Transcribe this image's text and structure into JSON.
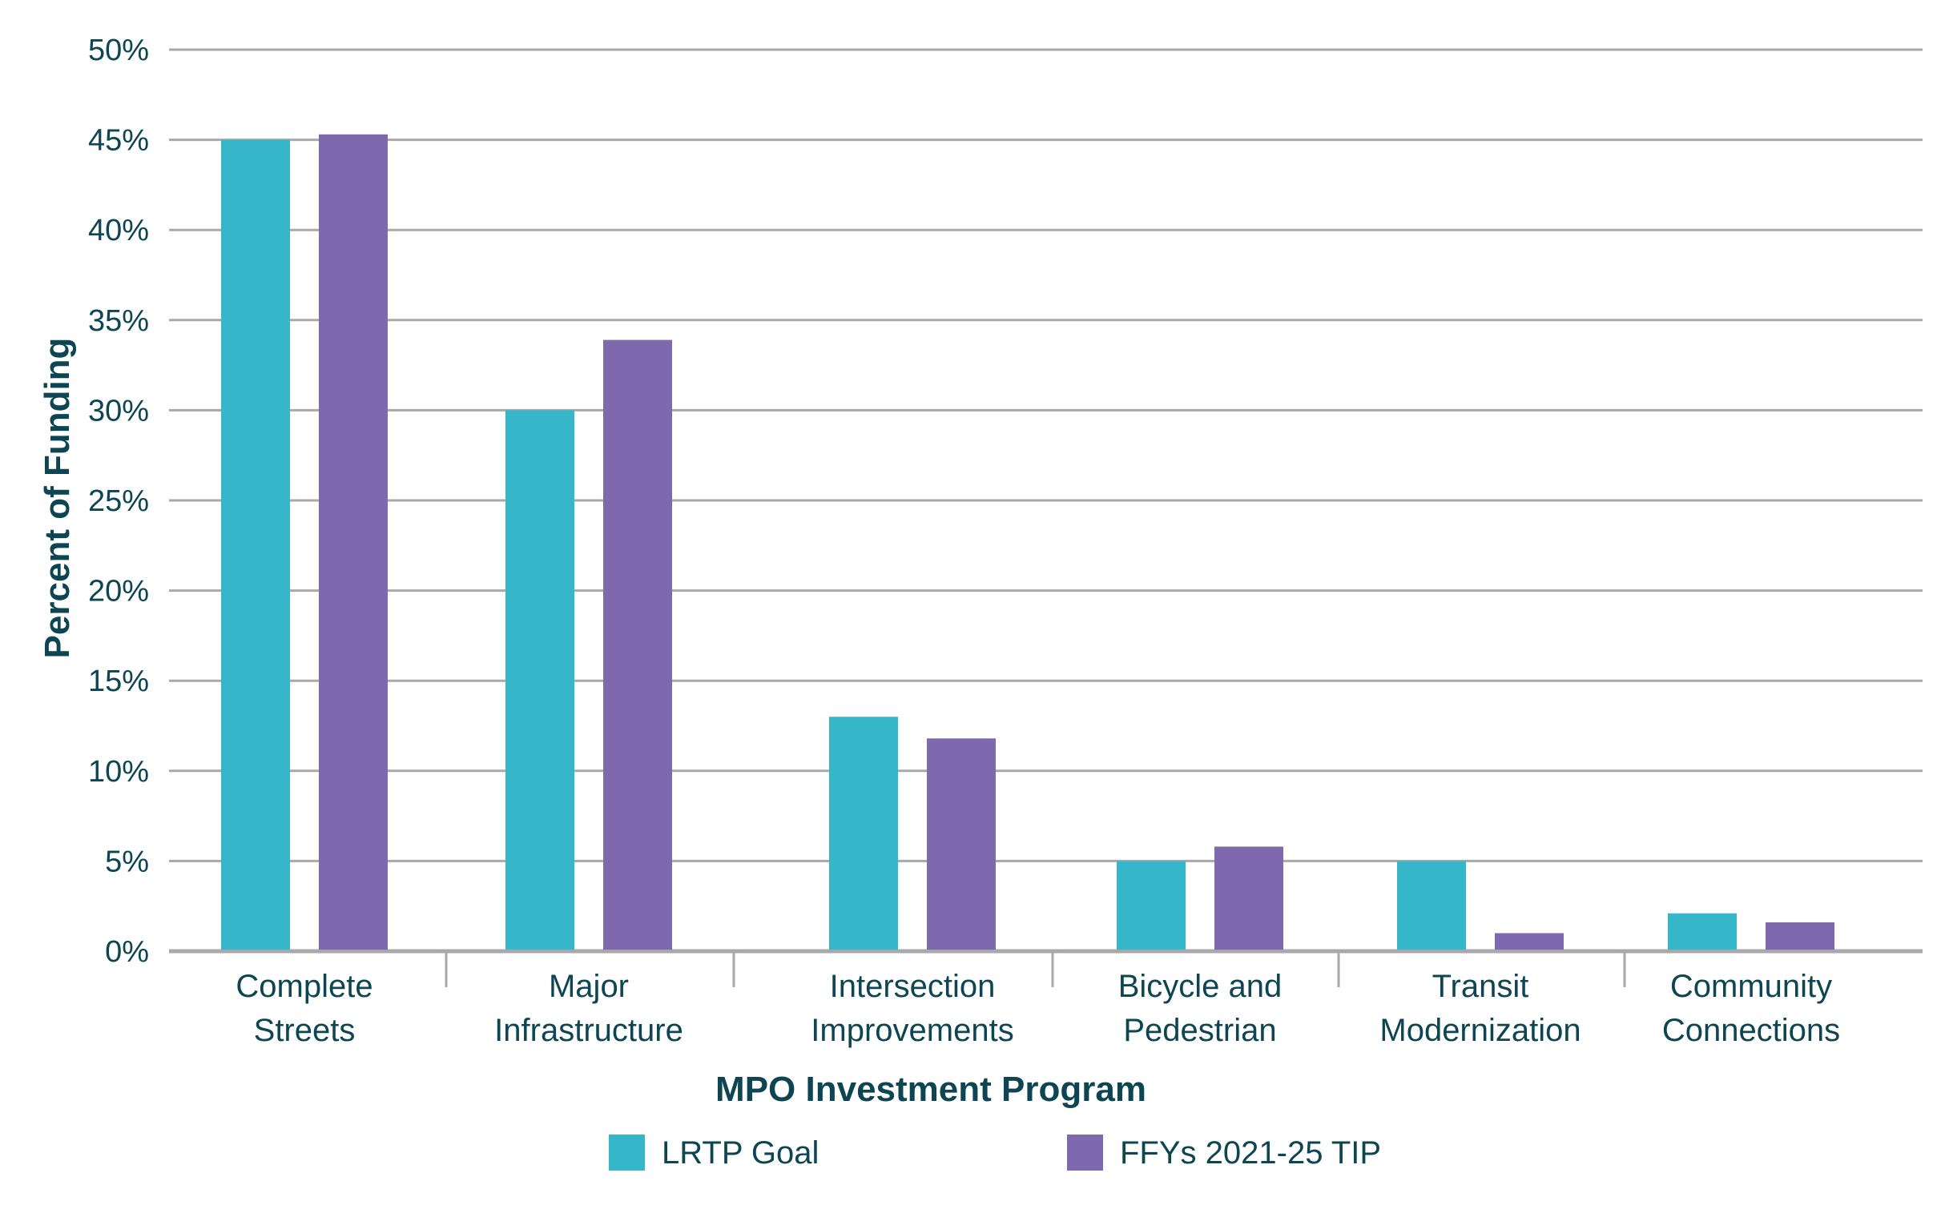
{
  "chart_data": {
    "type": "bar",
    "title": "",
    "xlabel": "MPO Investment Program",
    "ylabel": "Percent of Funding",
    "ylim": [
      0,
      50
    ],
    "yticks": [
      "0%",
      "5%",
      "10%",
      "15%",
      "20%",
      "25%",
      "30%",
      "35%",
      "40%",
      "45%",
      "50%"
    ],
    "grid": true,
    "legend_position": "bottom",
    "categories": [
      [
        "Complete",
        "Streets"
      ],
      [
        "Major",
        "Infrastructure"
      ],
      [
        "Intersection",
        "Improvements"
      ],
      [
        "Bicycle and",
        "Pedestrian"
      ],
      [
        "Transit",
        "Modernization"
      ],
      [
        "Community",
        "Connections"
      ]
    ],
    "series": [
      {
        "name": "LRTP Goal",
        "color": "#35b7c9",
        "values": [
          45,
          30,
          13,
          5,
          5,
          2.1
        ]
      },
      {
        "name": "FFYs 2021-25 TIP",
        "color": "#7e68ae",
        "values": [
          45.3,
          33.9,
          11.8,
          5.8,
          1.0,
          1.6
        ]
      }
    ]
  }
}
